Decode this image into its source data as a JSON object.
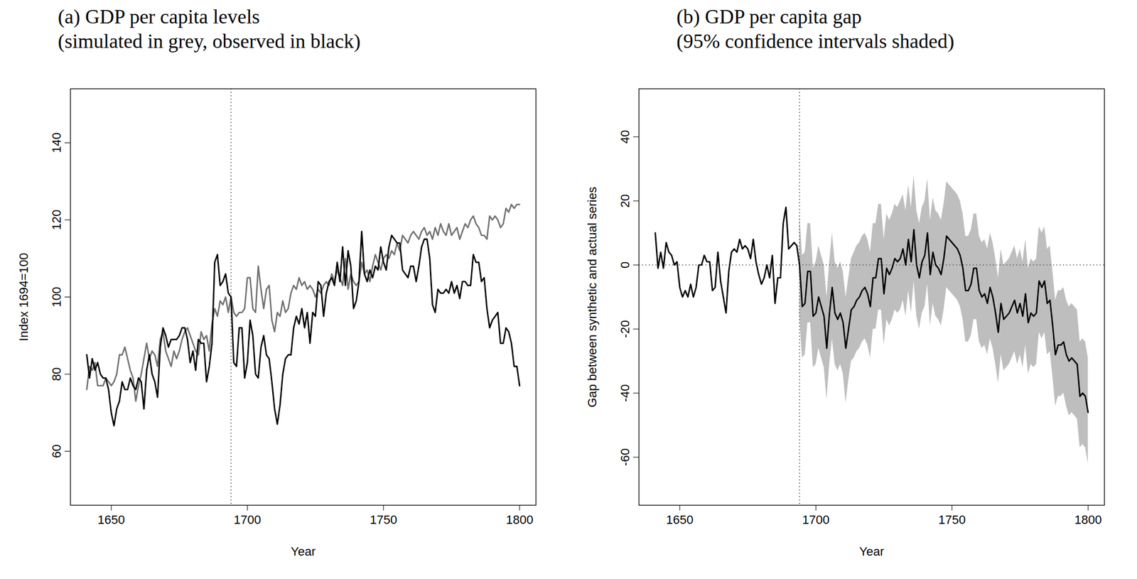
{
  "chart_data": [
    {
      "type": "line",
      "title": "(a) GDP per capita levels",
      "subtitle": "(simulated in grey, observed in black)",
      "x_label": "Year",
      "y_label": "Index 1694=100",
      "xlim": [
        1635,
        1806
      ],
      "xticks": [
        1650,
        1700,
        1750,
        1800
      ],
      "ylim": [
        46,
        154
      ],
      "yticks": [
        60,
        80,
        100,
        120,
        140
      ],
      "vline": 1694,
      "x": [
        1641,
        1642,
        1643,
        1644,
        1645,
        1646,
        1647,
        1648,
        1649,
        1650,
        1651,
        1652,
        1653,
        1654,
        1655,
        1656,
        1657,
        1658,
        1659,
        1660,
        1661,
        1662,
        1663,
        1664,
        1665,
        1666,
        1667,
        1668,
        1669,
        1670,
        1671,
        1672,
        1673,
        1674,
        1675,
        1676,
        1677,
        1678,
        1679,
        1680,
        1681,
        1682,
        1683,
        1684,
        1685,
        1686,
        1687,
        1688,
        1689,
        1690,
        1691,
        1692,
        1693,
        1694,
        1695,
        1696,
        1697,
        1698,
        1699,
        1700,
        1701,
        1702,
        1703,
        1704,
        1705,
        1706,
        1707,
        1708,
        1709,
        1710,
        1711,
        1712,
        1713,
        1714,
        1715,
        1716,
        1717,
        1718,
        1719,
        1720,
        1721,
        1722,
        1723,
        1724,
        1725,
        1726,
        1727,
        1728,
        1729,
        1730,
        1731,
        1732,
        1733,
        1734,
        1735,
        1736,
        1737,
        1738,
        1739,
        1740,
        1741,
        1742,
        1743,
        1744,
        1745,
        1746,
        1747,
        1748,
        1749,
        1750,
        1751,
        1752,
        1753,
        1754,
        1755,
        1756,
        1757,
        1758,
        1759,
        1760,
        1761,
        1762,
        1763,
        1764,
        1765,
        1766,
        1767,
        1768,
        1769,
        1770,
        1771,
        1772,
        1773,
        1774,
        1775,
        1776,
        1777,
        1778,
        1779,
        1780,
        1781,
        1782,
        1783,
        1784,
        1785,
        1786,
        1787,
        1788,
        1789,
        1790,
        1791,
        1792,
        1793,
        1794,
        1795,
        1796,
        1797,
        1798,
        1799,
        1800
      ],
      "series": [
        {
          "name": "simulated",
          "color": "#707070",
          "values": [
            76,
            82,
            81,
            83,
            77,
            77,
            77,
            79,
            78,
            77,
            78,
            80,
            85,
            85,
            87,
            84,
            81,
            79,
            73,
            77,
            80,
            84,
            88,
            84,
            86,
            85,
            82,
            89,
            91,
            86,
            84,
            82,
            86,
            84,
            86,
            89,
            91,
            92,
            90,
            88,
            86,
            85,
            91,
            89,
            90,
            86,
            93,
            97,
            95,
            99,
            98,
            100,
            96,
            100,
            96,
            95,
            96,
            96,
            97,
            105,
            105,
            97,
            96,
            108,
            102,
            97,
            102,
            103,
            94,
            91,
            96,
            95,
            99,
            96,
            97,
            101,
            103,
            102,
            105,
            103,
            104,
            102,
            103,
            102,
            100,
            102,
            101,
            103,
            104,
            103,
            106,
            104,
            107,
            105,
            103,
            110,
            102,
            106,
            104,
            103,
            104,
            109,
            106,
            107,
            104,
            108,
            111,
            109,
            107,
            110,
            111,
            110,
            112,
            111,
            114,
            112,
            116,
            115,
            114,
            116,
            117,
            116,
            115,
            117,
            118,
            116,
            117,
            115,
            118,
            116,
            119,
            117,
            116,
            119,
            116,
            117,
            118,
            115,
            117,
            119,
            118,
            120,
            121,
            119,
            118,
            116,
            116,
            115,
            121,
            120,
            121,
            120,
            118,
            119,
            123,
            122,
            124,
            123,
            124,
            124
          ]
        },
        {
          "name": "observed",
          "color": "#000000",
          "values": [
            85,
            79,
            84,
            81,
            83,
            80,
            79,
            79,
            76,
            70,
            66.6,
            71,
            73,
            78,
            76,
            76,
            79,
            77,
            76,
            79,
            78,
            71,
            81,
            85,
            80,
            78,
            74,
            87,
            92,
            90,
            87,
            89,
            89,
            89,
            90,
            92,
            92,
            89,
            83,
            86,
            81,
            89,
            88,
            88,
            78,
            82,
            88,
            109,
            111,
            103,
            104,
            106,
            101,
            100,
            83,
            82,
            92,
            92,
            79,
            83,
            94,
            90,
            80,
            79,
            87,
            90,
            85,
            84,
            78,
            71,
            67,
            72,
            80,
            84,
            85,
            85,
            92,
            95,
            93,
            97,
            92,
            96,
            88,
            96,
            95,
            104,
            103,
            95,
            101,
            104,
            105,
            103,
            109,
            104,
            113,
            103,
            112,
            108,
            97,
            99,
            104,
            117,
            106,
            104,
            107,
            105,
            108,
            107,
            113,
            109,
            107,
            113,
            116,
            115,
            114,
            114,
            107,
            106,
            105,
            108,
            108,
            104,
            108,
            113,
            115,
            115,
            110,
            98,
            96,
            102,
            101,
            101,
            102,
            101,
            104,
            101,
            103,
            99.6,
            104,
            104,
            103,
            103,
            111,
            109,
            109,
            104,
            105,
            97,
            92,
            94,
            95,
            96,
            88,
            88,
            92,
            91,
            88,
            82,
            82,
            77
          ]
        }
      ]
    },
    {
      "type": "line",
      "title": "(b) GDP per capita gap",
      "subtitle": "(95% confidence intervals shaded)",
      "x_label": "Year",
      "y_label": "Gap between synthetic and actual series",
      "xlim": [
        1635,
        1806
      ],
      "xticks": [
        1650,
        1700,
        1750,
        1800
      ],
      "ylim": [
        -75,
        55
      ],
      "yticks": [
        -60,
        -40,
        -20,
        0,
        20,
        40
      ],
      "vline": 1694,
      "hline": 0,
      "band_color": "#bebebe",
      "x": [
        1641,
        1642,
        1643,
        1644,
        1645,
        1646,
        1647,
        1648,
        1649,
        1650,
        1651,
        1652,
        1653,
        1654,
        1655,
        1656,
        1657,
        1658,
        1659,
        1660,
        1661,
        1662,
        1663,
        1664,
        1665,
        1666,
        1667,
        1668,
        1669,
        1670,
        1671,
        1672,
        1673,
        1674,
        1675,
        1676,
        1677,
        1678,
        1679,
        1680,
        1681,
        1682,
        1683,
        1684,
        1685,
        1686,
        1687,
        1688,
        1689,
        1690,
        1691,
        1692,
        1693,
        1694,
        1695,
        1696,
        1697,
        1698,
        1699,
        1700,
        1701,
        1702,
        1703,
        1704,
        1705,
        1706,
        1707,
        1708,
        1709,
        1710,
        1711,
        1712,
        1713,
        1714,
        1715,
        1716,
        1717,
        1718,
        1719,
        1720,
        1721,
        1722,
        1723,
        1724,
        1725,
        1726,
        1727,
        1728,
        1729,
        1730,
        1731,
        1732,
        1733,
        1734,
        1735,
        1736,
        1737,
        1738,
        1739,
        1740,
        1741,
        1742,
        1743,
        1744,
        1745,
        1746,
        1747,
        1748,
        1749,
        1750,
        1751,
        1752,
        1753,
        1754,
        1755,
        1756,
        1757,
        1758,
        1759,
        1760,
        1761,
        1762,
        1763,
        1764,
        1765,
        1766,
        1767,
        1768,
        1769,
        1770,
        1771,
        1772,
        1773,
        1774,
        1775,
        1776,
        1777,
        1778,
        1779,
        1780,
        1781,
        1782,
        1783,
        1784,
        1785,
        1786,
        1787,
        1788,
        1789,
        1790,
        1791,
        1792,
        1793,
        1794,
        1795,
        1796,
        1797,
        1798,
        1799,
        1800
      ],
      "series": [
        {
          "color": "#000000",
          "values": [
            10,
            -1,
            4,
            -1,
            7,
            4,
            3,
            0,
            1,
            -7,
            -10,
            -8,
            -10,
            -6,
            -10,
            -7,
            0,
            0,
            3,
            1,
            1,
            -8,
            -7,
            4,
            -5,
            -10,
            -15,
            -2,
            4,
            5,
            4,
            8,
            5,
            6,
            5,
            2,
            8,
            1,
            -3,
            -6,
            -4,
            0,
            -4,
            3,
            -12,
            -4,
            -4,
            13,
            18,
            5,
            6,
            7,
            6,
            0,
            -13,
            -12,
            -2,
            -2,
            -16,
            -15,
            -10,
            -13,
            -16,
            -26,
            -15,
            -7,
            -15,
            -17,
            -15,
            -18,
            -26,
            -20,
            -14,
            -13,
            -11,
            -10,
            -8,
            -7,
            -9,
            -13,
            -4,
            -4,
            2,
            2,
            -9,
            -1,
            -3,
            -1,
            2,
            1,
            2,
            5,
            0,
            8,
            1,
            11,
            0,
            -4,
            1,
            3,
            10,
            -3,
            4,
            0,
            -1,
            -3,
            2,
            9,
            8,
            7,
            6,
            5,
            3,
            -1,
            -8,
            -8,
            -6,
            -1,
            -1,
            -8,
            -10,
            -9,
            -12,
            -7,
            -10,
            -15,
            -21,
            -12,
            -17,
            -16,
            -15,
            -13,
            -11,
            -15,
            -12,
            -16,
            -9,
            -18,
            -15,
            -16,
            -15,
            -5,
            -7,
            -5,
            -12,
            -11,
            -19,
            -28,
            -25,
            -25,
            -24,
            -28,
            -30,
            -29,
            -30,
            -31,
            -41,
            -40,
            -41,
            -46
          ],
          "ci_lower": [
            null,
            null,
            null,
            null,
            null,
            null,
            null,
            null,
            null,
            null,
            null,
            null,
            null,
            null,
            null,
            null,
            null,
            null,
            null,
            null,
            null,
            null,
            null,
            null,
            null,
            null,
            null,
            null,
            null,
            null,
            null,
            null,
            null,
            null,
            null,
            null,
            null,
            null,
            null,
            null,
            null,
            null,
            null,
            null,
            null,
            null,
            null,
            null,
            null,
            null,
            null,
            null,
            null,
            -16,
            -29,
            -28,
            -18,
            -18,
            -32,
            -31,
            -26,
            -29,
            -32,
            -42,
            -31,
            -23,
            -31,
            -33,
            -31,
            -34,
            -43,
            -36,
            -30,
            -29,
            -27,
            -26,
            -24,
            -23,
            -25,
            -29,
            -20,
            -20,
            -14,
            -14,
            -25,
            -17,
            -19,
            -17,
            -14,
            -15,
            -14,
            -11,
            -16,
            -8,
            -15,
            -5,
            -16,
            -20,
            -15,
            -13,
            -6,
            -19,
            -12,
            -16,
            -17,
            -19,
            -14,
            -7,
            -8,
            -9,
            -10,
            -11,
            -13,
            -17,
            -24,
            -24,
            -22,
            -17,
            -17,
            -24,
            -26,
            -25,
            -28,
            -23,
            -26,
            -31,
            -37,
            -28,
            -33,
            -32,
            -31,
            -29,
            -27,
            -31,
            -28,
            -32,
            -25,
            -34,
            -31,
            -32,
            -31,
            -21,
            -23,
            -21,
            -28,
            -27,
            -35,
            -44,
            -41,
            -41,
            -40,
            -44,
            -47,
            -46,
            -47,
            -48,
            -57,
            -56,
            -57,
            -62
          ],
          "ci_upper": [
            null,
            null,
            null,
            null,
            null,
            null,
            null,
            null,
            null,
            null,
            null,
            null,
            null,
            null,
            null,
            null,
            null,
            null,
            null,
            null,
            null,
            null,
            null,
            null,
            null,
            null,
            null,
            null,
            null,
            null,
            null,
            null,
            null,
            null,
            null,
            null,
            null,
            null,
            null,
            null,
            null,
            null,
            null,
            null,
            null,
            null,
            null,
            null,
            null,
            null,
            null,
            null,
            null,
            16,
            3,
            4,
            13,
            13,
            -1,
            1,
            6,
            3,
            0,
            -10,
            1,
            10,
            1,
            -1,
            1,
            -2,
            -10,
            -4,
            2,
            4,
            6,
            7,
            9,
            10,
            8,
            4,
            13,
            13,
            19,
            19,
            8,
            16,
            14,
            16,
            19,
            18,
            20,
            22,
            17,
            25,
            18,
            28,
            17,
            13,
            18,
            20,
            27,
            14,
            21,
            17,
            16,
            14,
            19,
            26,
            25,
            24,
            23,
            22,
            20,
            16,
            9,
            9,
            11,
            16,
            16,
            9,
            7,
            8,
            5,
            10,
            7,
            2,
            -4,
            5,
            0,
            1,
            2,
            4,
            6,
            2,
            5,
            1,
            8,
            -1,
            2,
            1,
            2,
            12,
            10,
            12,
            5,
            6,
            -2,
            -11,
            -8,
            -8,
            -7,
            -11,
            -13,
            -12,
            -13,
            -14,
            -24,
            -23,
            -24,
            -29
          ]
        }
      ]
    }
  ]
}
